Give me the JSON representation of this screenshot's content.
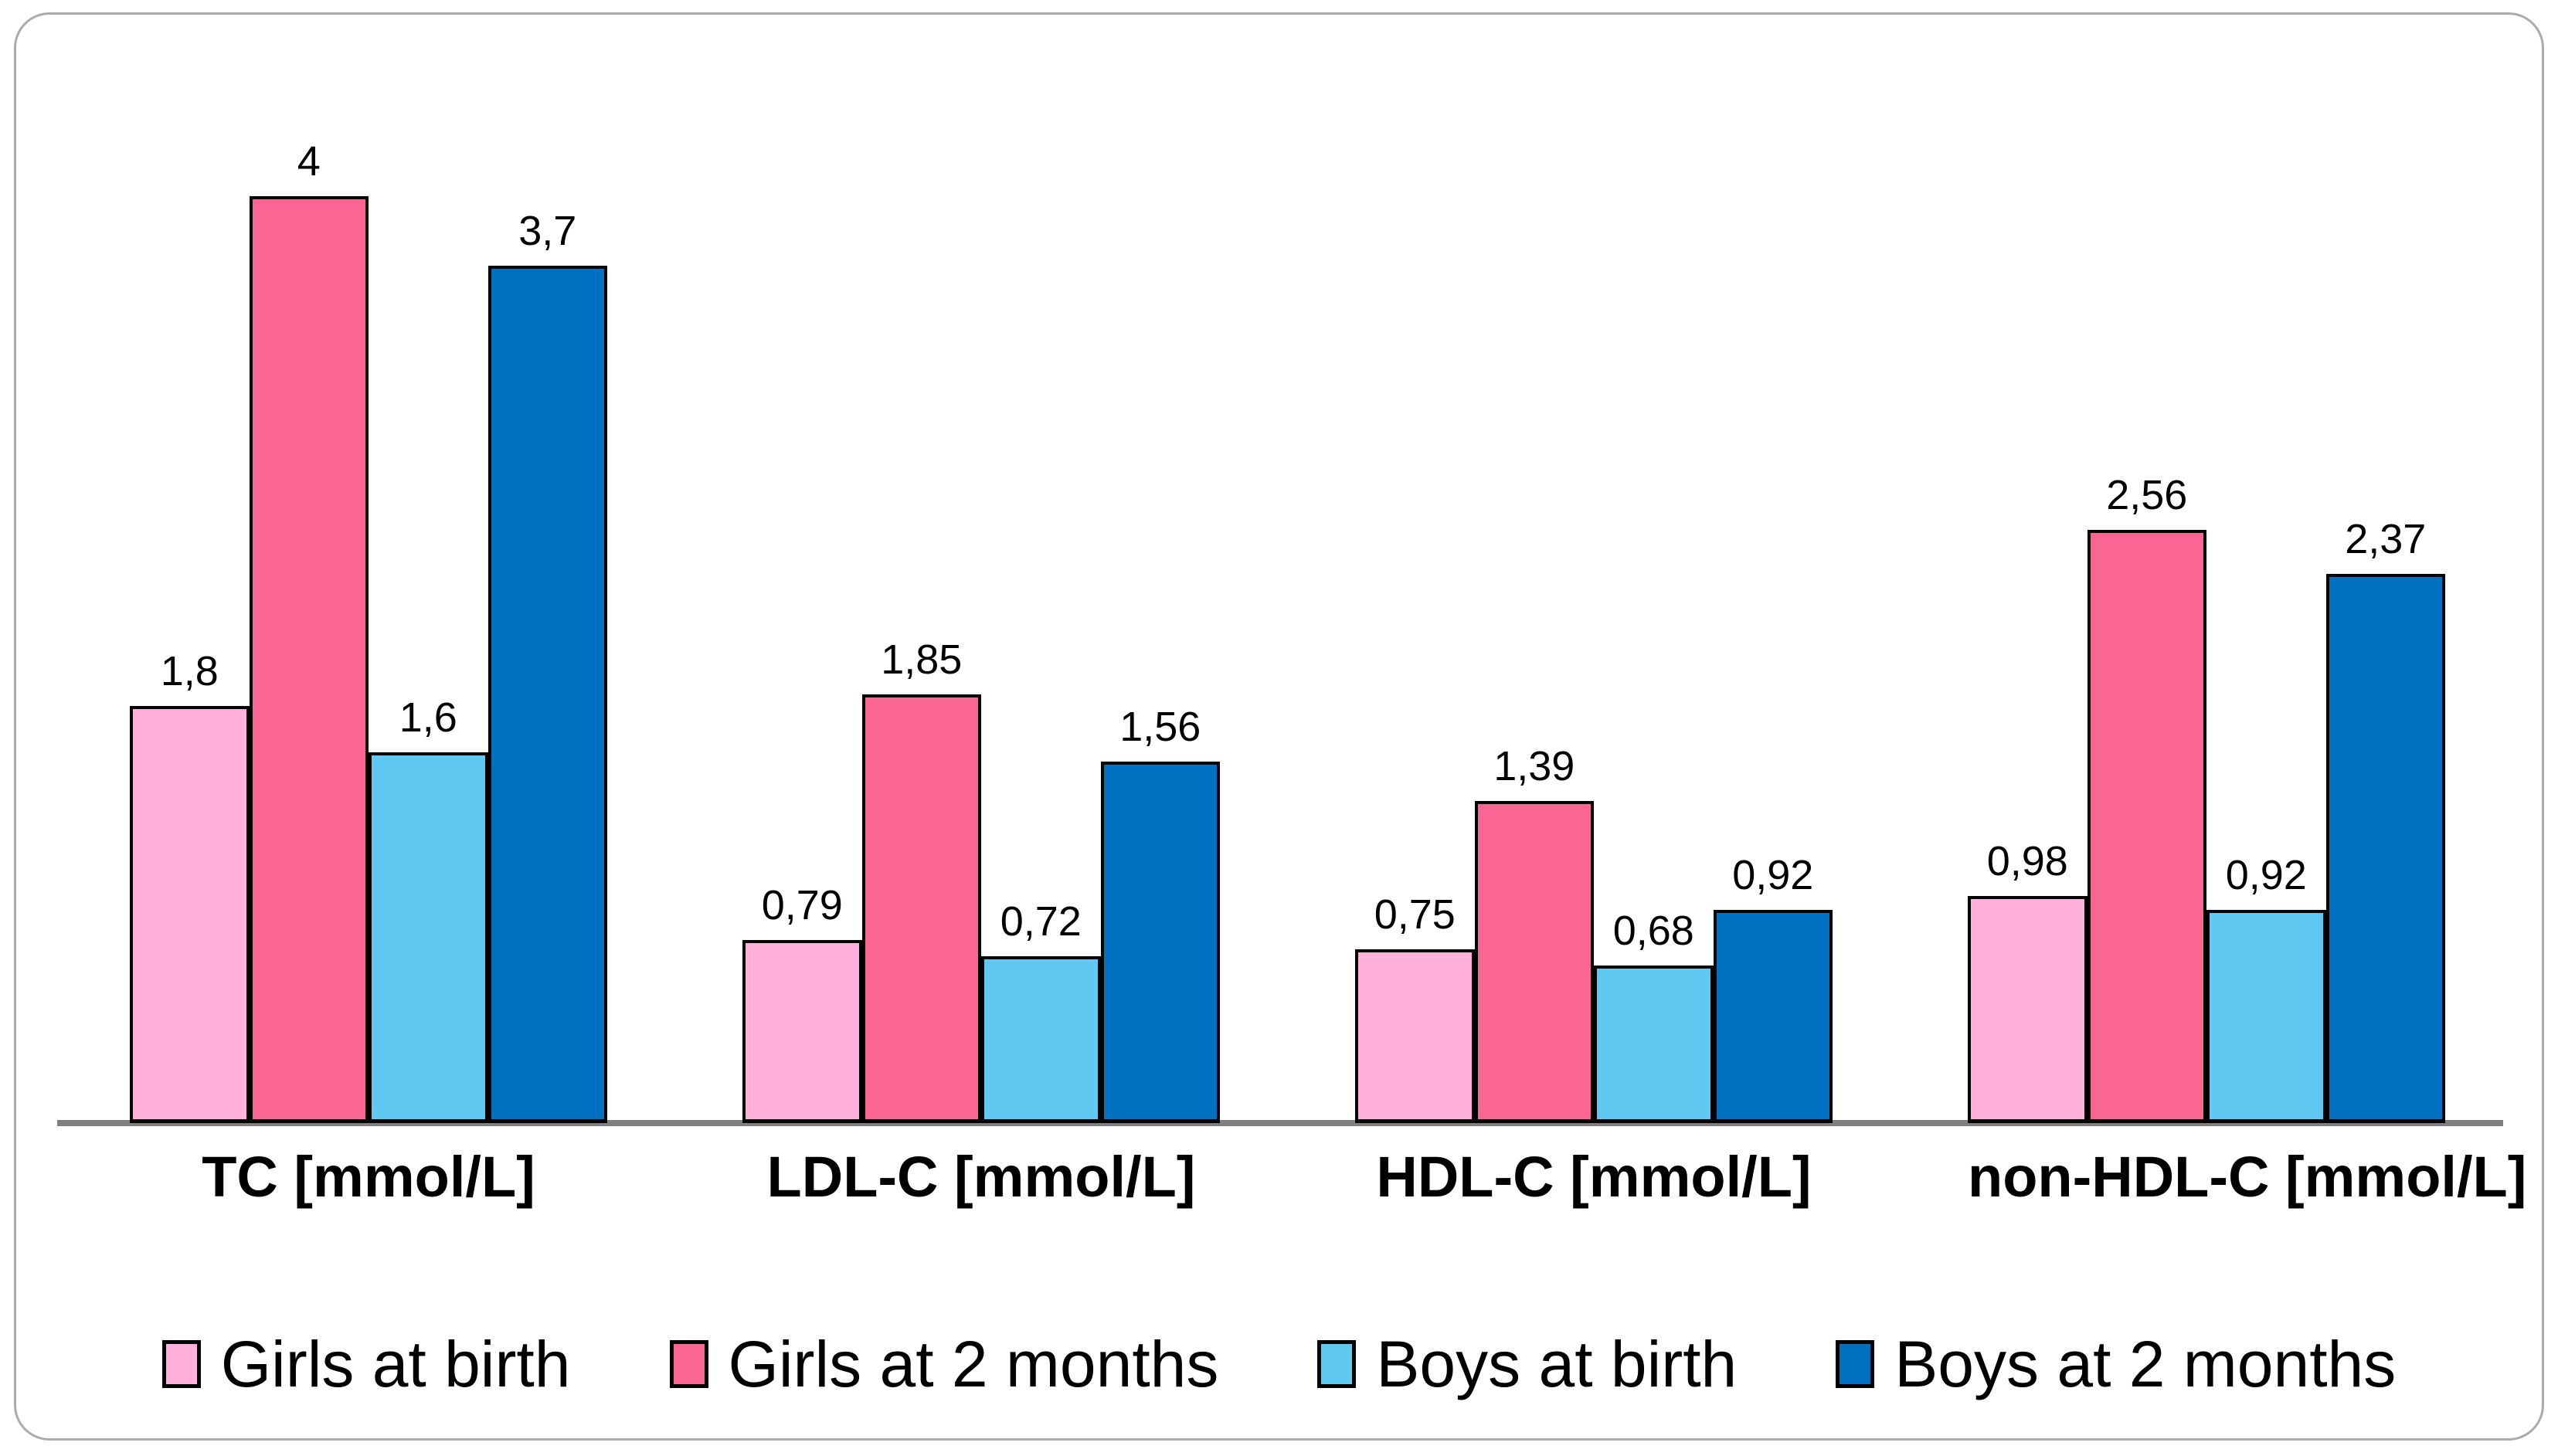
{
  "chart_data": {
    "type": "bar",
    "title": "",
    "xlabel": "",
    "ylabel": "",
    "ylim": [
      0,
      4.2
    ],
    "grid": false,
    "axis_shown": "x-baseline-only",
    "legend_position": "bottom",
    "decimal_separator": ",",
    "categories": [
      "TC [mmol/L]",
      "LDL-C [mmol/L]",
      "HDL-C [mmol/L]",
      "non-HDL-C [mmol/L]"
    ],
    "series": [
      {
        "name": "Girls at birth",
        "color": "#FFB1DC",
        "values": [
          1.8,
          0.79,
          0.75,
          0.98
        ],
        "labels": [
          "1,8",
          "0,79",
          "0,75",
          "0,98"
        ]
      },
      {
        "name": "Girls at 2 months",
        "color": "#FA6693",
        "values": [
          4,
          1.85,
          1.39,
          2.56
        ],
        "labels": [
          "4",
          "1,85",
          "1,39",
          "2,56"
        ]
      },
      {
        "name": "Boys at birth",
        "color": "#5FC9F1",
        "values": [
          1.6,
          0.72,
          0.68,
          0.92
        ],
        "labels": [
          "1,6",
          "0,72",
          "0,68",
          "0,92"
        ]
      },
      {
        "name": "Boys at 2 months",
        "color": "#0070C0",
        "values": [
          3.7,
          1.56,
          0.92,
          2.37
        ],
        "labels": [
          "3,7",
          "1,56",
          "0,92",
          "2,37"
        ]
      }
    ],
    "colors": {
      "bar_outline": "#000000",
      "axis_line": "#7f7f7f",
      "card_border": "#ababab",
      "text": "#000000",
      "background": "#ffffff"
    }
  }
}
